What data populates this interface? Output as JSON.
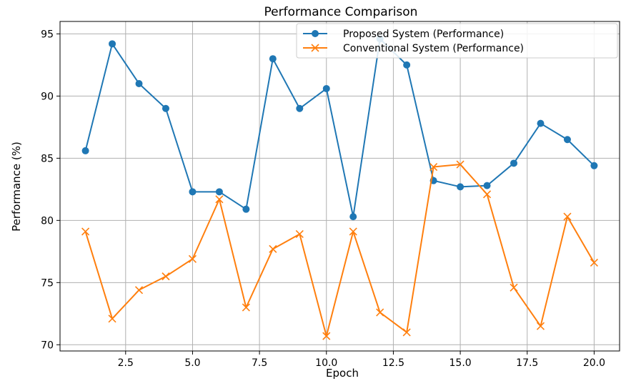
{
  "chart_data": {
    "type": "line",
    "title": "Performance Comparison",
    "xlabel": "Epoch",
    "ylabel": "Performance (%)",
    "x": [
      1,
      2,
      3,
      4,
      5,
      6,
      7,
      8,
      9,
      10,
      11,
      12,
      13,
      14,
      15,
      16,
      17,
      18,
      19,
      20
    ],
    "series": [
      {
        "name": "Proposed System (Performance)",
        "color": "#1f77b4",
        "marker": "circle",
        "values": [
          85.6,
          94.2,
          91.0,
          89.0,
          82.3,
          82.3,
          80.9,
          93.0,
          89.0,
          90.6,
          80.3,
          94.6,
          92.5,
          83.2,
          82.7,
          82.8,
          84.6,
          87.8,
          86.5,
          84.4
        ]
      },
      {
        "name": "Conventional System (Performance)",
        "color": "#ff7f0e",
        "marker": "x",
        "values": [
          79.1,
          72.1,
          74.4,
          75.5,
          76.9,
          81.7,
          73.0,
          77.7,
          78.9,
          70.7,
          79.1,
          72.6,
          71.0,
          84.3,
          84.5,
          82.1,
          74.6,
          71.5,
          80.3,
          76.6
        ]
      }
    ],
    "xticks": [
      2.5,
      5.0,
      7.5,
      10.0,
      12.5,
      15.0,
      17.5,
      20.0
    ],
    "xtick_labels": [
      "2.5",
      "5.0",
      "7.5",
      "10.0",
      "12.5",
      "15.0",
      "17.5",
      "20.0"
    ],
    "yticks": [
      70,
      75,
      80,
      85,
      90,
      95
    ],
    "ytick_labels": [
      "70",
      "75",
      "80",
      "85",
      "90",
      "95"
    ],
    "xlim": [
      0.05,
      20.95
    ],
    "ylim": [
      69.5,
      96.0
    ],
    "grid": true,
    "legend_position": "top-right"
  }
}
